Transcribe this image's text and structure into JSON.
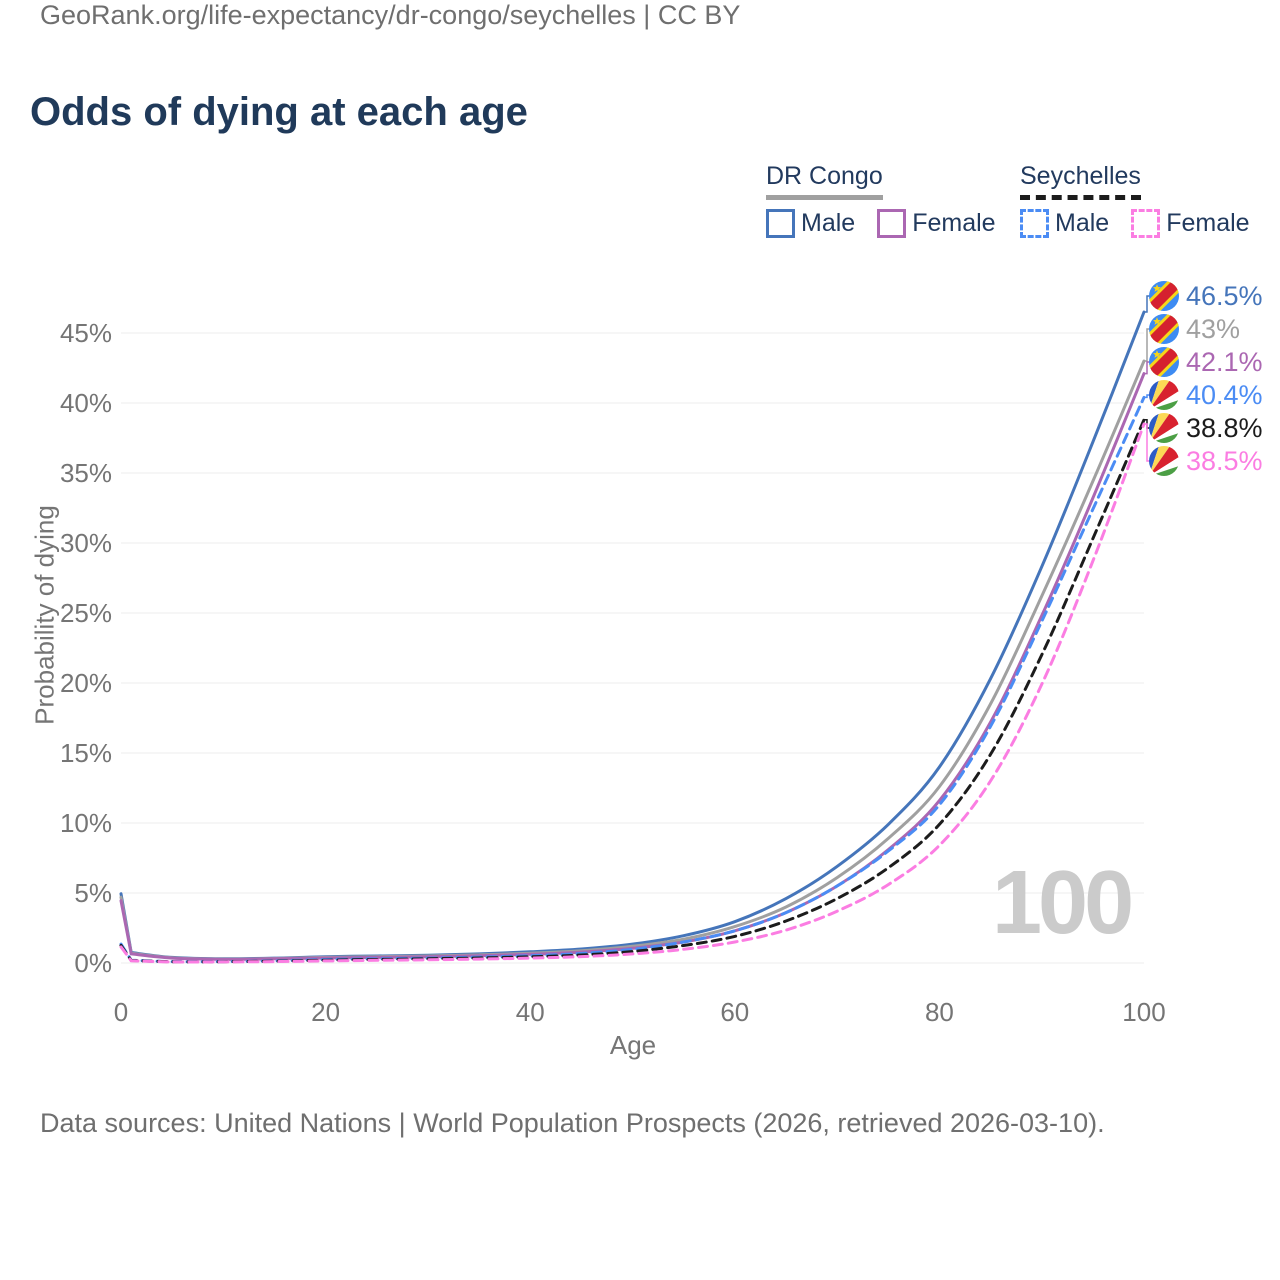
{
  "header": {
    "title": "Odds of dying at each age"
  },
  "legend": {
    "groups": [
      {
        "title": "DR Congo",
        "underline_series": 1,
        "items": [
          {
            "label": "Male",
            "series": 0
          },
          {
            "label": "Female",
            "series": 2
          }
        ]
      },
      {
        "title": "Seychelles",
        "underline_series": 4,
        "items": [
          {
            "label": "Male",
            "series": 3
          },
          {
            "label": "Female",
            "series": 5
          }
        ]
      }
    ]
  },
  "chart_data": {
    "type": "line",
    "title": "Odds of dying at each age",
    "xlabel": "Age",
    "ylabel": "Probability of dying",
    "xlim": [
      0,
      100
    ],
    "ylim_percent": [
      0,
      47
    ],
    "grid": "horizontal",
    "x_ticks": [
      0,
      20,
      40,
      60,
      80,
      100
    ],
    "y_ticks": [
      "0%",
      "5%",
      "10%",
      "15%",
      "20%",
      "25%",
      "30%",
      "35%",
      "40%",
      "45%"
    ],
    "watermark": "100",
    "ages": [
      0,
      1,
      5,
      10,
      15,
      20,
      25,
      30,
      35,
      40,
      45,
      50,
      55,
      60,
      65,
      70,
      75,
      80,
      85,
      90,
      95,
      100
    ],
    "series": [
      {
        "name": "DR Congo Male",
        "country": "DR Congo",
        "sex": "Male",
        "flag": "drc",
        "color": "#4575ba",
        "style": "solid",
        "end_label": "46.5%",
        "values": [
          4.95,
          0.75,
          0.4,
          0.3,
          0.35,
          0.45,
          0.5,
          0.55,
          0.65,
          0.8,
          1.0,
          1.35,
          1.95,
          2.95,
          4.6,
          6.9,
          9.9,
          14.0,
          20.3,
          28.3,
          37.2,
          46.5
        ]
      },
      {
        "name": "DR Congo Both sexes",
        "country": "DR Congo",
        "sex": "Both sexes",
        "flag": "drc",
        "color": "#a0a0a0",
        "style": "solid",
        "end_label": "43%",
        "values": [
          4.7,
          0.7,
          0.37,
          0.28,
          0.32,
          0.4,
          0.45,
          0.5,
          0.58,
          0.7,
          0.88,
          1.2,
          1.7,
          2.6,
          4.0,
          6.1,
          8.9,
          12.6,
          18.5,
          26.2,
          34.4,
          43.0
        ]
      },
      {
        "name": "DR Congo Female",
        "country": "DR Congo",
        "sex": "Female",
        "flag": "drc",
        "color": "#ab67b2",
        "style": "solid",
        "end_label": "42.1%",
        "values": [
          4.45,
          0.65,
          0.35,
          0.26,
          0.3,
          0.36,
          0.4,
          0.45,
          0.52,
          0.62,
          0.78,
          1.05,
          1.5,
          2.3,
          3.6,
          5.5,
          8.1,
          11.6,
          17.2,
          24.8,
          33.2,
          42.1
        ]
      },
      {
        "name": "Seychelles Male",
        "country": "Seychelles",
        "sex": "Male",
        "flag": "sey",
        "color": "#4b8cf4",
        "style": "dashed",
        "end_label": "40.4%",
        "values": [
          1.35,
          0.2,
          0.1,
          0.1,
          0.15,
          0.25,
          0.3,
          0.35,
          0.42,
          0.52,
          0.68,
          0.98,
          1.5,
          2.3,
          3.6,
          5.5,
          8.0,
          11.3,
          16.9,
          24.4,
          32.4,
          40.4
        ]
      },
      {
        "name": "Seychelles Both sexes",
        "country": "Seychelles",
        "sex": "Both sexes",
        "flag": "sey",
        "color": "#1c1c1c",
        "style": "dashed",
        "end_label": "38.8%",
        "values": [
          1.25,
          0.18,
          0.09,
          0.09,
          0.13,
          0.2,
          0.25,
          0.3,
          0.36,
          0.44,
          0.57,
          0.82,
          1.25,
          1.9,
          3.0,
          4.6,
          6.8,
          9.9,
          14.9,
          22.0,
          30.3,
          38.8
        ]
      },
      {
        "name": "Seychelles Female",
        "country": "Seychelles",
        "sex": "Female",
        "flag": "sey",
        "color": "#fb7de2",
        "style": "dashed",
        "end_label": "38.5%",
        "values": [
          1.15,
          0.16,
          0.08,
          0.08,
          0.1,
          0.15,
          0.19,
          0.23,
          0.28,
          0.35,
          0.46,
          0.65,
          0.98,
          1.5,
          2.35,
          3.7,
          5.6,
          8.4,
          13.0,
          19.9,
          28.7,
          38.5
        ]
      }
    ]
  },
  "footer": {
    "line1": "Data sources: United Nations | World Population Prospects (2026, retrieved 2026-03-10).",
    "line2": "GeoRank.org/life-expectancy/dr-congo/seychelles | CC BY"
  }
}
